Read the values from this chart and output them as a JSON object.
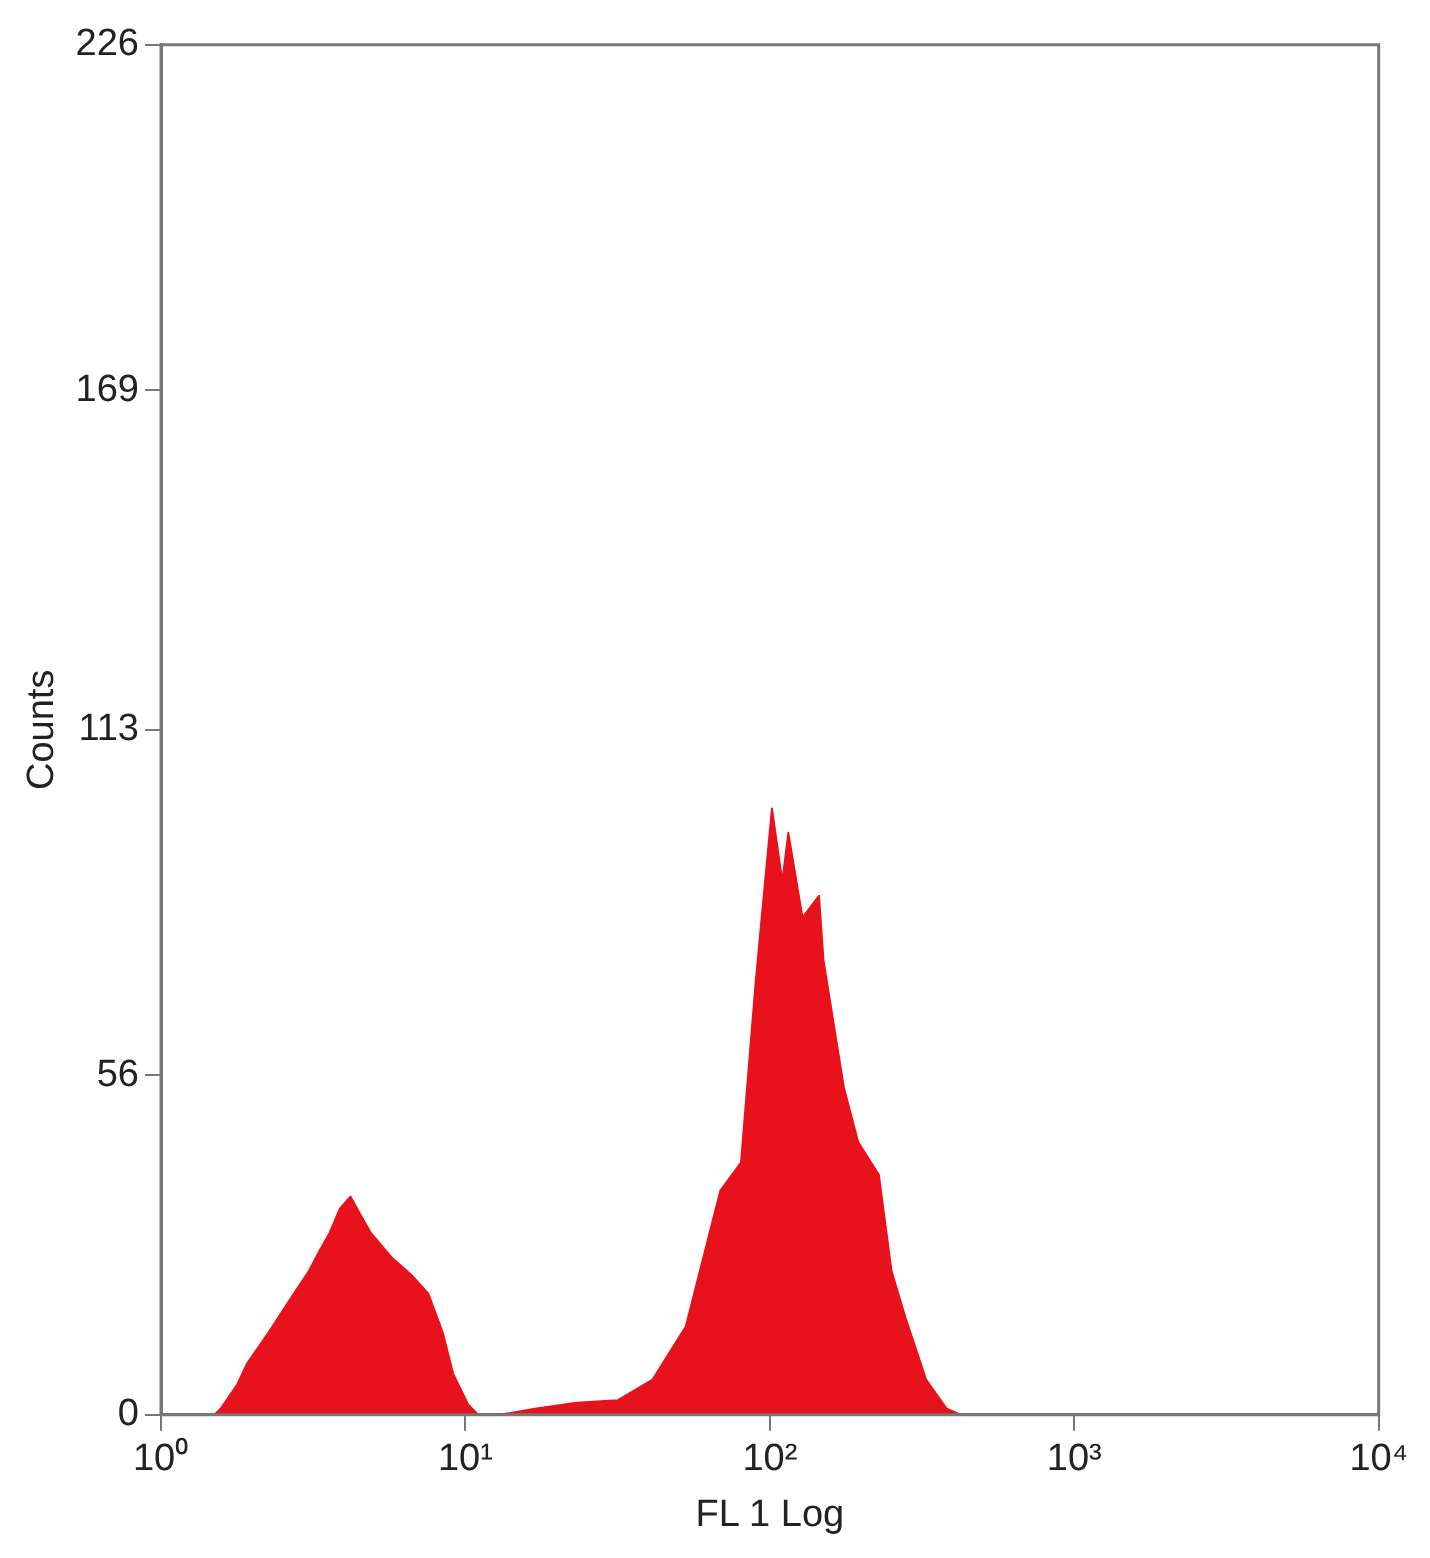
{
  "chart_data": {
    "type": "area",
    "xlabel": "FL 1 Log",
    "ylabel": "Counts",
    "log": "x",
    "xlim": [
      1,
      10000
    ],
    "xticks": [
      {
        "value": 1,
        "label": "10⁰"
      },
      {
        "value": 10,
        "label": "10¹"
      },
      {
        "value": 100,
        "label": "10²"
      },
      {
        "value": 1000,
        "label": "10³"
      },
      {
        "value": 10000,
        "label": "10⁴"
      }
    ],
    "ylim": [
      0,
      226
    ],
    "yticks": [
      0,
      56,
      113,
      169,
      226
    ],
    "grid": false,
    "series": [
      {
        "color": "#e8121c",
        "x": [
          1.5,
          1.57,
          1.78,
          1.92,
          2.25,
          2.62,
          3.06,
          3.31,
          3.58,
          3.87,
          4.19,
          4.52,
          4.89,
          5.71,
          6.67,
          7.55,
          8.43,
          9.11,
          10.2,
          11,
          13,
          16.9,
          23.2,
          31.6,
          41.2,
          52.9,
          68.8,
          80.4,
          89.7,
          94,
          101.6,
          109.9,
          115,
          128,
          145,
          150,
          175,
          195,
          228,
          251,
          279,
          326,
          381,
          425
        ],
        "values": [
          0,
          1,
          5,
          8.5,
          13.5,
          18.6,
          23.7,
          27,
          30,
          34,
          36,
          33,
          30,
          26,
          23,
          20,
          13.5,
          6.8,
          1.7,
          0,
          0,
          1,
          2,
          2.4,
          5.8,
          14.5,
          37,
          41.6,
          71,
          82,
          100,
          88,
          96,
          82,
          85.6,
          75,
          54,
          45,
          39.6,
          23.7,
          16,
          5.8,
          1,
          0
        ]
      }
    ]
  }
}
